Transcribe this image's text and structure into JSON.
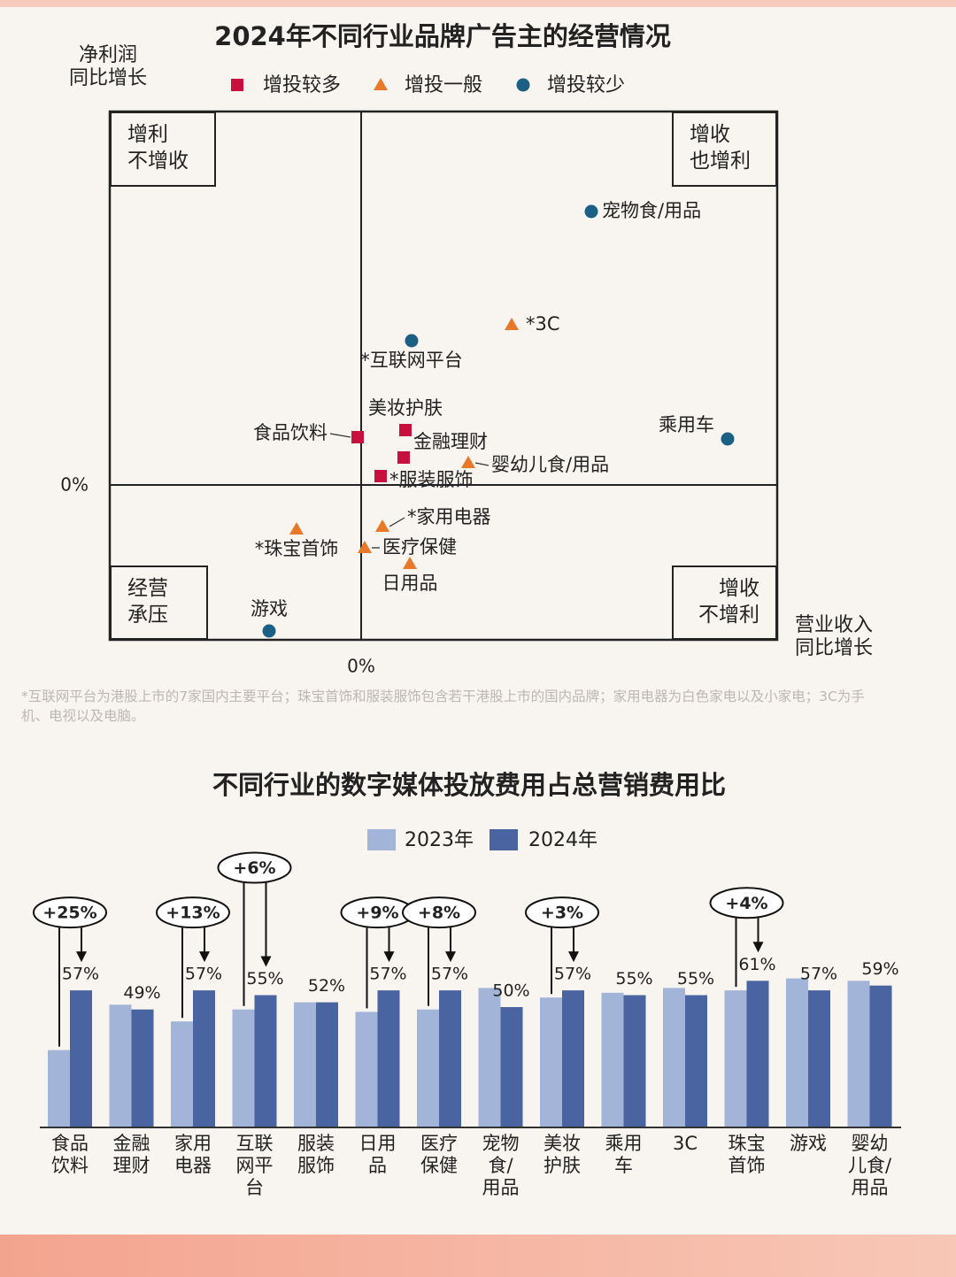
{
  "chart_data": [
    {
      "type": "scatter",
      "title": "2024年不同行业品牌广告主的经营情况",
      "y_label": "净利润\n同比增长",
      "x_label": "营业收入\n同比增长",
      "xlim": [
        -28.4,
        47
      ],
      "ylim": [
        -17.5,
        42.2
      ],
      "xticks": [
        {
          "value": 0,
          "label": "0%"
        }
      ],
      "yticks": [
        {
          "value": 0,
          "label": "0%"
        }
      ],
      "quadrant_labels": [
        "增利\n不增收",
        "增收\n也增利",
        "经营\n承压",
        "增收\n不增利"
      ],
      "series": [
        {
          "name": "增投较多",
          "color": "#c8103e",
          "marker": "square",
          "labels": [
            "食品饮料",
            "美妆护肤",
            "金融理财",
            "*服装服饰"
          ],
          "x": [
            -0.4,
            5,
            4.8,
            2.2
          ],
          "y": [
            5.4,
            6.2,
            3.1,
            1
          ]
        },
        {
          "name": "增投一般",
          "color": "#e8782a",
          "marker": "triangle",
          "labels": [
            "*3C",
            "婴幼儿食/用品",
            "*家用电器",
            "*珠宝首饰",
            "医疗保健",
            "日用品"
          ],
          "x": [
            17,
            12.1,
            2.4,
            -7.3,
            0.4,
            5.5
          ],
          "y": [
            18.1,
            2.5,
            -4.7,
            -5,
            -7.1,
            -8.9
          ]
        },
        {
          "name": "增投较少",
          "color": "#1c5f85",
          "marker": "circle",
          "labels": [
            "宠物食/用品",
            "*互联网平台",
            "乘用车",
            "游戏"
          ],
          "x": [
            26,
            5.7,
            41.4,
            -10.4
          ],
          "y": [
            30.9,
            16.3,
            5.2,
            -16.5
          ]
        }
      ],
      "footnote": "*互联网平台为港股上市的7家国内主要平台；珠宝首饰和服装服饰包含若干港股上市的国内品牌；家用电器为白色家电以及小家电；3C为手机、电视以及电脑。"
    },
    {
      "type": "bar",
      "title": "不同行业的数字媒体投放费用占总营销费用比",
      "categories": [
        "食品\n饮料",
        "金融\n理财",
        "家用\n电器",
        "互联\n网平\n台",
        "服装\n服饰",
        "日用\n品",
        "医疗\n保健",
        "宠物\n食/\n用品",
        "美妆\n护肤",
        "乘用\n车",
        "3C",
        "珠宝\n首饰",
        "游戏",
        "婴幼\n儿食/\n用品"
      ],
      "ylim": [
        0,
        70
      ],
      "series": [
        {
          "name": "2023年",
          "color": "#a2b5d9",
          "values": [
            32,
            51,
            44,
            49,
            52,
            48,
            49,
            58,
            54,
            56,
            58,
            57,
            62,
            61
          ]
        },
        {
          "name": "2024年",
          "color": "#4a64a1",
          "values": [
            57,
            49,
            57,
            55,
            52,
            57,
            57,
            50,
            57,
            55,
            55,
            61,
            57,
            59
          ],
          "value_labels": [
            "57%",
            "49%",
            "57%",
            "55%",
            "52%",
            "57%",
            "57%",
            "50%",
            "57%",
            "55%",
            "55%",
            "61%",
            "57%",
            "59%"
          ]
        }
      ],
      "change_labels": [
        "+25%",
        null,
        "+13%",
        "+6%",
        null,
        "+9%",
        "+8%",
        null,
        "+3%",
        null,
        null,
        "+4%",
        null,
        null
      ]
    }
  ]
}
